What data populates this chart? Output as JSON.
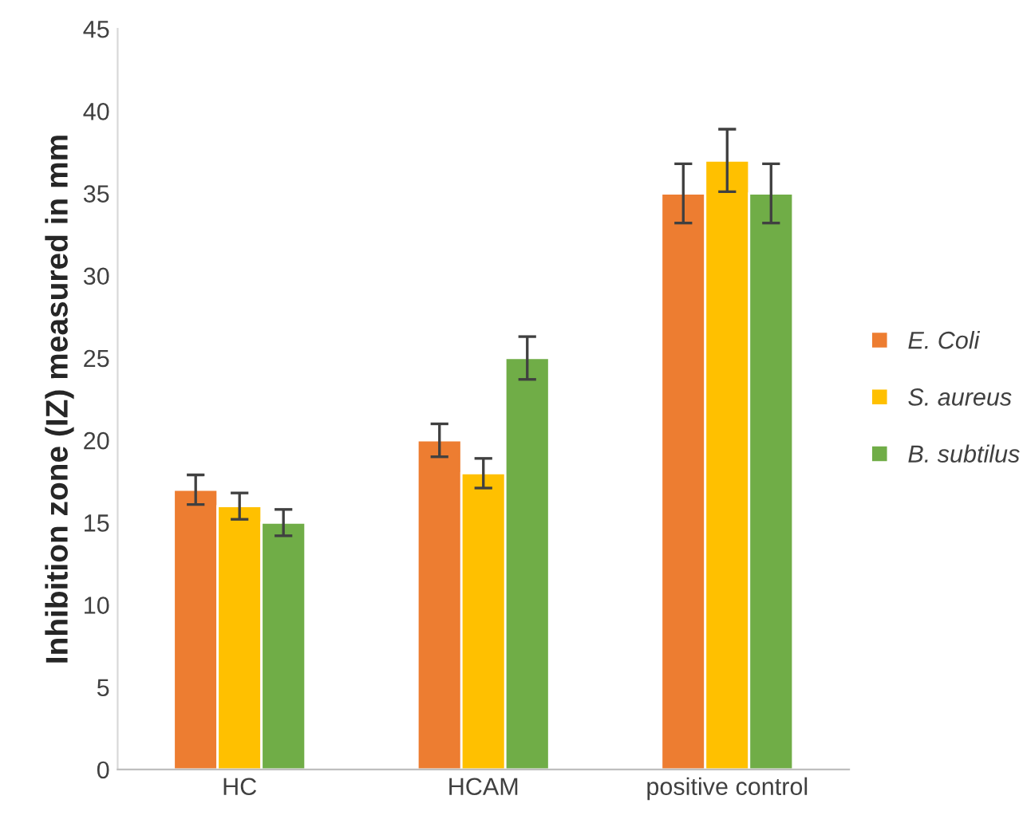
{
  "chart_data": {
    "type": "bar",
    "ylabel": "Inhibition zone (IZ) measured in mm",
    "categories": [
      "HC",
      "HCAM",
      "positive control"
    ],
    "series": [
      {
        "name": "E. Coli",
        "color": "#ed7d31",
        "values": [
          17,
          20,
          35
        ],
        "errors": [
          0.9,
          1,
          1.8
        ]
      },
      {
        "name": "S. aureus",
        "color": "#ffc000",
        "values": [
          16,
          18,
          37
        ],
        "errors": [
          0.8,
          0.9,
          1.9
        ]
      },
      {
        "name": "B. subtilus",
        "color": "#70ad47",
        "values": [
          15,
          25,
          35
        ],
        "errors": [
          0.8,
          1.3,
          1.8
        ]
      }
    ],
    "ylim": [
      0,
      45
    ],
    "yticks": [
      0,
      5,
      10,
      15,
      20,
      25,
      30,
      35,
      40,
      45
    ],
    "grid": false,
    "legend": "right"
  }
}
